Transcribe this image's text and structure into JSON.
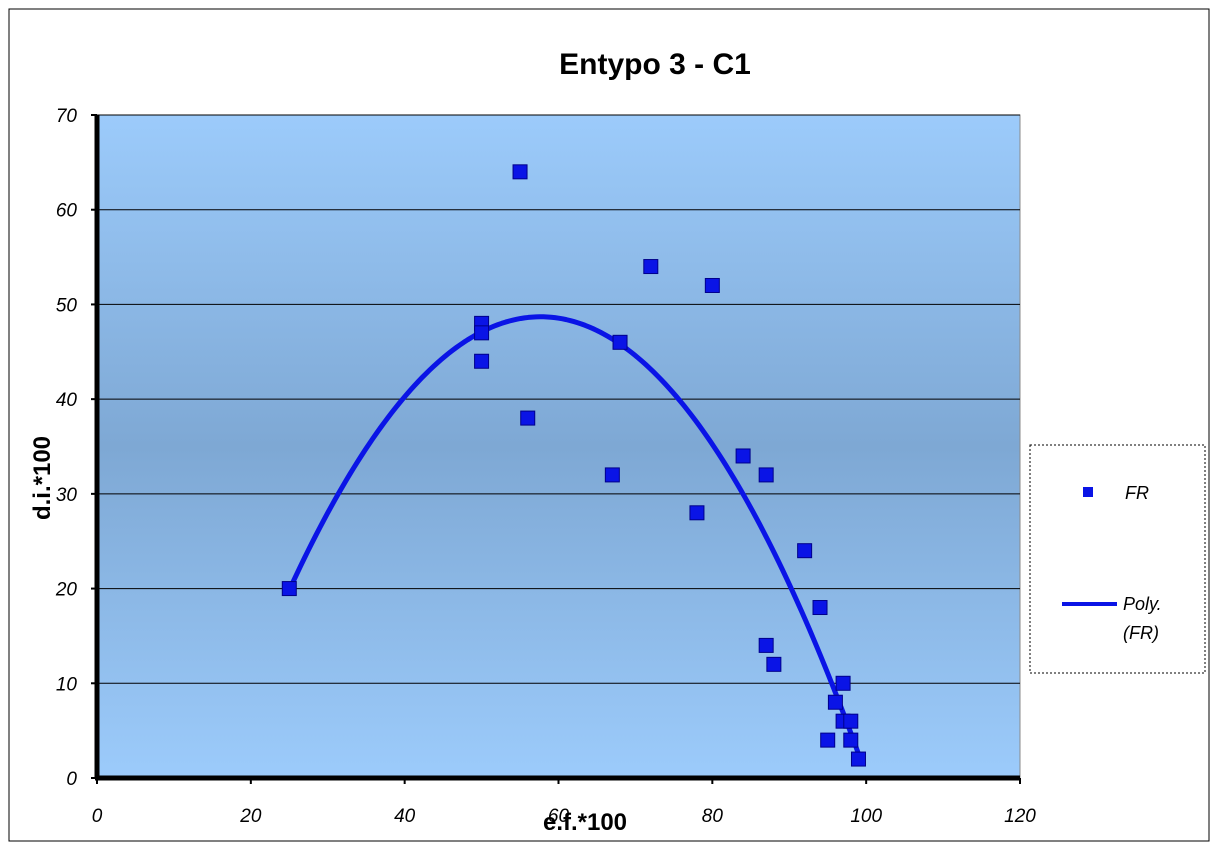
{
  "chart_data": {
    "type": "scatter",
    "title": "Entypo 3 - C1",
    "xlabel": "e.f.*100",
    "ylabel": "d.i.*100",
    "xlim": [
      0,
      120
    ],
    "ylim": [
      0,
      70
    ],
    "x_ticks": [
      0,
      20,
      40,
      60,
      80,
      100,
      120
    ],
    "y_ticks": [
      0,
      10,
      20,
      30,
      40,
      50,
      60,
      70
    ],
    "grid": "horizontal",
    "legend_position": "right",
    "series": [
      {
        "name": "FR",
        "kind": "points",
        "marker": "square",
        "color": "#0a14e6",
        "points": [
          [
            25,
            20
          ],
          [
            50,
            48
          ],
          [
            50,
            47
          ],
          [
            50,
            44
          ],
          [
            55,
            64
          ],
          [
            56,
            38
          ],
          [
            67,
            32
          ],
          [
            68,
            46
          ],
          [
            72,
            54
          ],
          [
            78,
            28
          ],
          [
            80,
            52
          ],
          [
            84,
            34
          ],
          [
            87,
            32
          ],
          [
            87,
            14
          ],
          [
            88,
            12
          ],
          [
            92,
            24
          ],
          [
            94,
            18
          ],
          [
            95,
            4
          ],
          [
            96,
            8
          ],
          [
            97,
            10
          ],
          [
            97,
            6
          ],
          [
            98,
            6
          ],
          [
            98,
            4
          ],
          [
            99,
            2
          ]
        ]
      },
      {
        "name": "Poly. (FR)",
        "kind": "trendline",
        "color": "#0a14e6",
        "fit": "polynomial",
        "x_range": [
          25,
          99
        ]
      }
    ],
    "legend": [
      {
        "label": "FR",
        "kind": "points"
      },
      {
        "label": "Poly.",
        "label2": "(FR)",
        "kind": "trendline"
      }
    ]
  }
}
